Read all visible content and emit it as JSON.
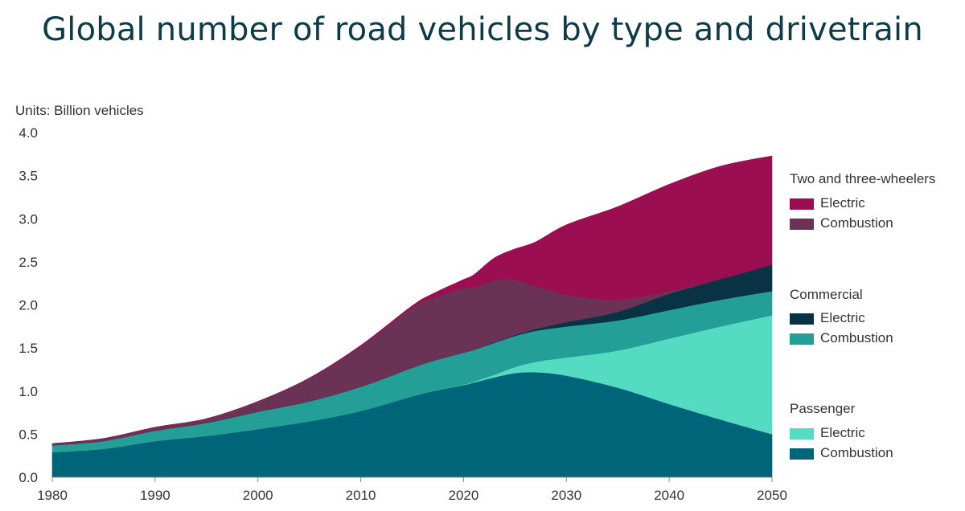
{
  "chart_data": {
    "type": "area",
    "stacked": true,
    "title": "Global number of road vehicles by type and drivetrain",
    "units_label": "Units: Billion vehicles",
    "x": [
      1980,
      1985,
      1990,
      1995,
      2000,
      2005,
      2010,
      2015,
      2017,
      2020,
      2021,
      2023,
      2025,
      2027,
      2030,
      2035,
      2040,
      2045,
      2050
    ],
    "xlim": [
      1980,
      2050
    ],
    "xticks": [
      "1980",
      "1990",
      "2000",
      "2010",
      "2020",
      "2030",
      "2040",
      "2050"
    ],
    "ylim": [
      0,
      4.0
    ],
    "yticks": [
      "0.0",
      "0.5",
      "1.0",
      "1.5",
      "2.0",
      "2.5",
      "3.0",
      "3.5",
      "4.0"
    ],
    "grid": false,
    "series": [
      {
        "group": "Passenger",
        "name": "Combustion",
        "color": "#006579",
        "values": [
          0.29,
          0.33,
          0.42,
          0.48,
          0.56,
          0.65,
          0.77,
          0.94,
          1.0,
          1.07,
          1.1,
          1.16,
          1.21,
          1.22,
          1.18,
          1.04,
          0.85,
          0.67,
          0.5
        ]
      },
      {
        "group": "Passenger",
        "name": "Electric",
        "color": "#54dbc2",
        "values": [
          0,
          0,
          0,
          0,
          0,
          0,
          0,
          0,
          0,
          0.005,
          0.01,
          0.03,
          0.07,
          0.12,
          0.21,
          0.43,
          0.76,
          1.08,
          1.38
        ]
      },
      {
        "group": "Commercial",
        "name": "Combustion",
        "color": "#239f98",
        "values": [
          0.08,
          0.09,
          0.12,
          0.15,
          0.2,
          0.23,
          0.28,
          0.33,
          0.35,
          0.37,
          0.37,
          0.37,
          0.36,
          0.36,
          0.36,
          0.35,
          0.33,
          0.31,
          0.28
        ]
      },
      {
        "group": "Commercial",
        "name": "Electric",
        "color": "#093345",
        "values": [
          0,
          0,
          0,
          0,
          0,
          0,
          0,
          0,
          0,
          0,
          0,
          0.005,
          0.01,
          0.02,
          0.05,
          0.1,
          0.19,
          0.24,
          0.31
        ]
      },
      {
        "group": "Two and three-wheelers",
        "name": "Combustion",
        "color": "#6a3355",
        "values": [
          0.02,
          0.03,
          0.04,
          0.05,
          0.12,
          0.27,
          0.47,
          0.7,
          0.73,
          0.75,
          0.72,
          0.72,
          0.64,
          0.5,
          0.32,
          0.14,
          0.03,
          0,
          0
        ]
      },
      {
        "group": "Two and three-wheelers",
        "name": "Electric",
        "color": "#9b0f52",
        "values": [
          0,
          0,
          0,
          0,
          0,
          0.002,
          0.01,
          0.02,
          0.05,
          0.1,
          0.15,
          0.26,
          0.36,
          0.51,
          0.81,
          1.08,
          1.24,
          1.31,
          1.26
        ]
      }
    ],
    "legend_position": "right"
  },
  "legend": [
    {
      "title": "Two and three-wheelers",
      "items": [
        {
          "label": "Electric",
          "color": "#9b0f52"
        },
        {
          "label": "Combustion",
          "color": "#6a3355"
        }
      ]
    },
    {
      "title": "Commercial",
      "items": [
        {
          "label": "Electric",
          "color": "#093345"
        },
        {
          "label": "Combustion",
          "color": "#239f98"
        }
      ]
    },
    {
      "title": "Passenger",
      "items": [
        {
          "label": "Electric",
          "color": "#54dbc2"
        },
        {
          "label": "Combustion",
          "color": "#006579"
        }
      ]
    }
  ]
}
